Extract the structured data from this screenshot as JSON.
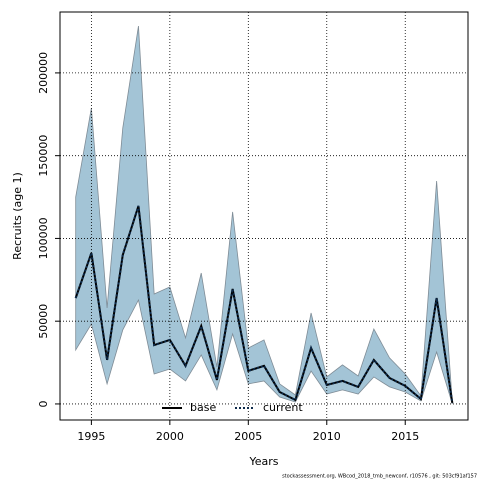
{
  "chart_data": {
    "type": "line",
    "xlabel": "Years",
    "ylabel": "Recruits (age 1)",
    "footnote": "stockassessment.org, WBcod_2018_tmb_newconf, r10576 , git: 503cf91af157",
    "x": [
      1994,
      1995,
      1996,
      1997,
      1998,
      1999,
      2000,
      2001,
      2002,
      2003,
      2004,
      2005,
      2006,
      2007,
      2008,
      2009,
      2010,
      2011,
      2012,
      2013,
      2014,
      2015,
      2016,
      2017,
      2018
    ],
    "series": [
      {
        "name": "base",
        "color": "#000000",
        "dash": "solid",
        "values": [
          64000,
          91200,
          26600,
          90000,
          119600,
          35600,
          38700,
          23000,
          47100,
          14500,
          69500,
          20000,
          23000,
          7200,
          2400,
          33800,
          11500,
          13900,
          10300,
          26600,
          15700,
          10900,
          3000,
          64000,
          600
        ]
      },
      {
        "name": "current",
        "color": "#0d2a4a",
        "dash": "dotted",
        "values": [
          64000,
          91200,
          26600,
          90000,
          119600,
          35600,
          38700,
          23000,
          47100,
          14500,
          69500,
          20000,
          23000,
          7200,
          2400,
          33800,
          11500,
          13900,
          10300,
          26600,
          15700,
          10900,
          3000,
          64000,
          600
        ]
      }
    ],
    "band": {
      "color": "#a3c4d6",
      "edge": "#7f8c96",
      "upper": [
        125000,
        178800,
        58000,
        166700,
        228300,
        66400,
        70700,
        39900,
        79100,
        22300,
        116000,
        33800,
        38700,
        12100,
        5400,
        55000,
        16300,
        23600,
        16900,
        45300,
        27800,
        18100,
        4800,
        134700,
        1200
      ],
      "lower": [
        32600,
        48300,
        12100,
        44700,
        62800,
        18100,
        21100,
        13900,
        29600,
        8500,
        42300,
        12100,
        13900,
        4200,
        1200,
        19900,
        6000,
        8500,
        6000,
        16300,
        10300,
        7200,
        1800,
        31400,
        0
      ]
    },
    "xlim": [
      1993.0,
      2019.0
    ],
    "ylim": [
      -9700,
      236800
    ],
    "xticks": [
      1995,
      2000,
      2005,
      2010,
      2015
    ],
    "yticks": [
      0,
      50000,
      100000,
      150000,
      200000
    ],
    "grid": true,
    "legend": "bottom"
  }
}
